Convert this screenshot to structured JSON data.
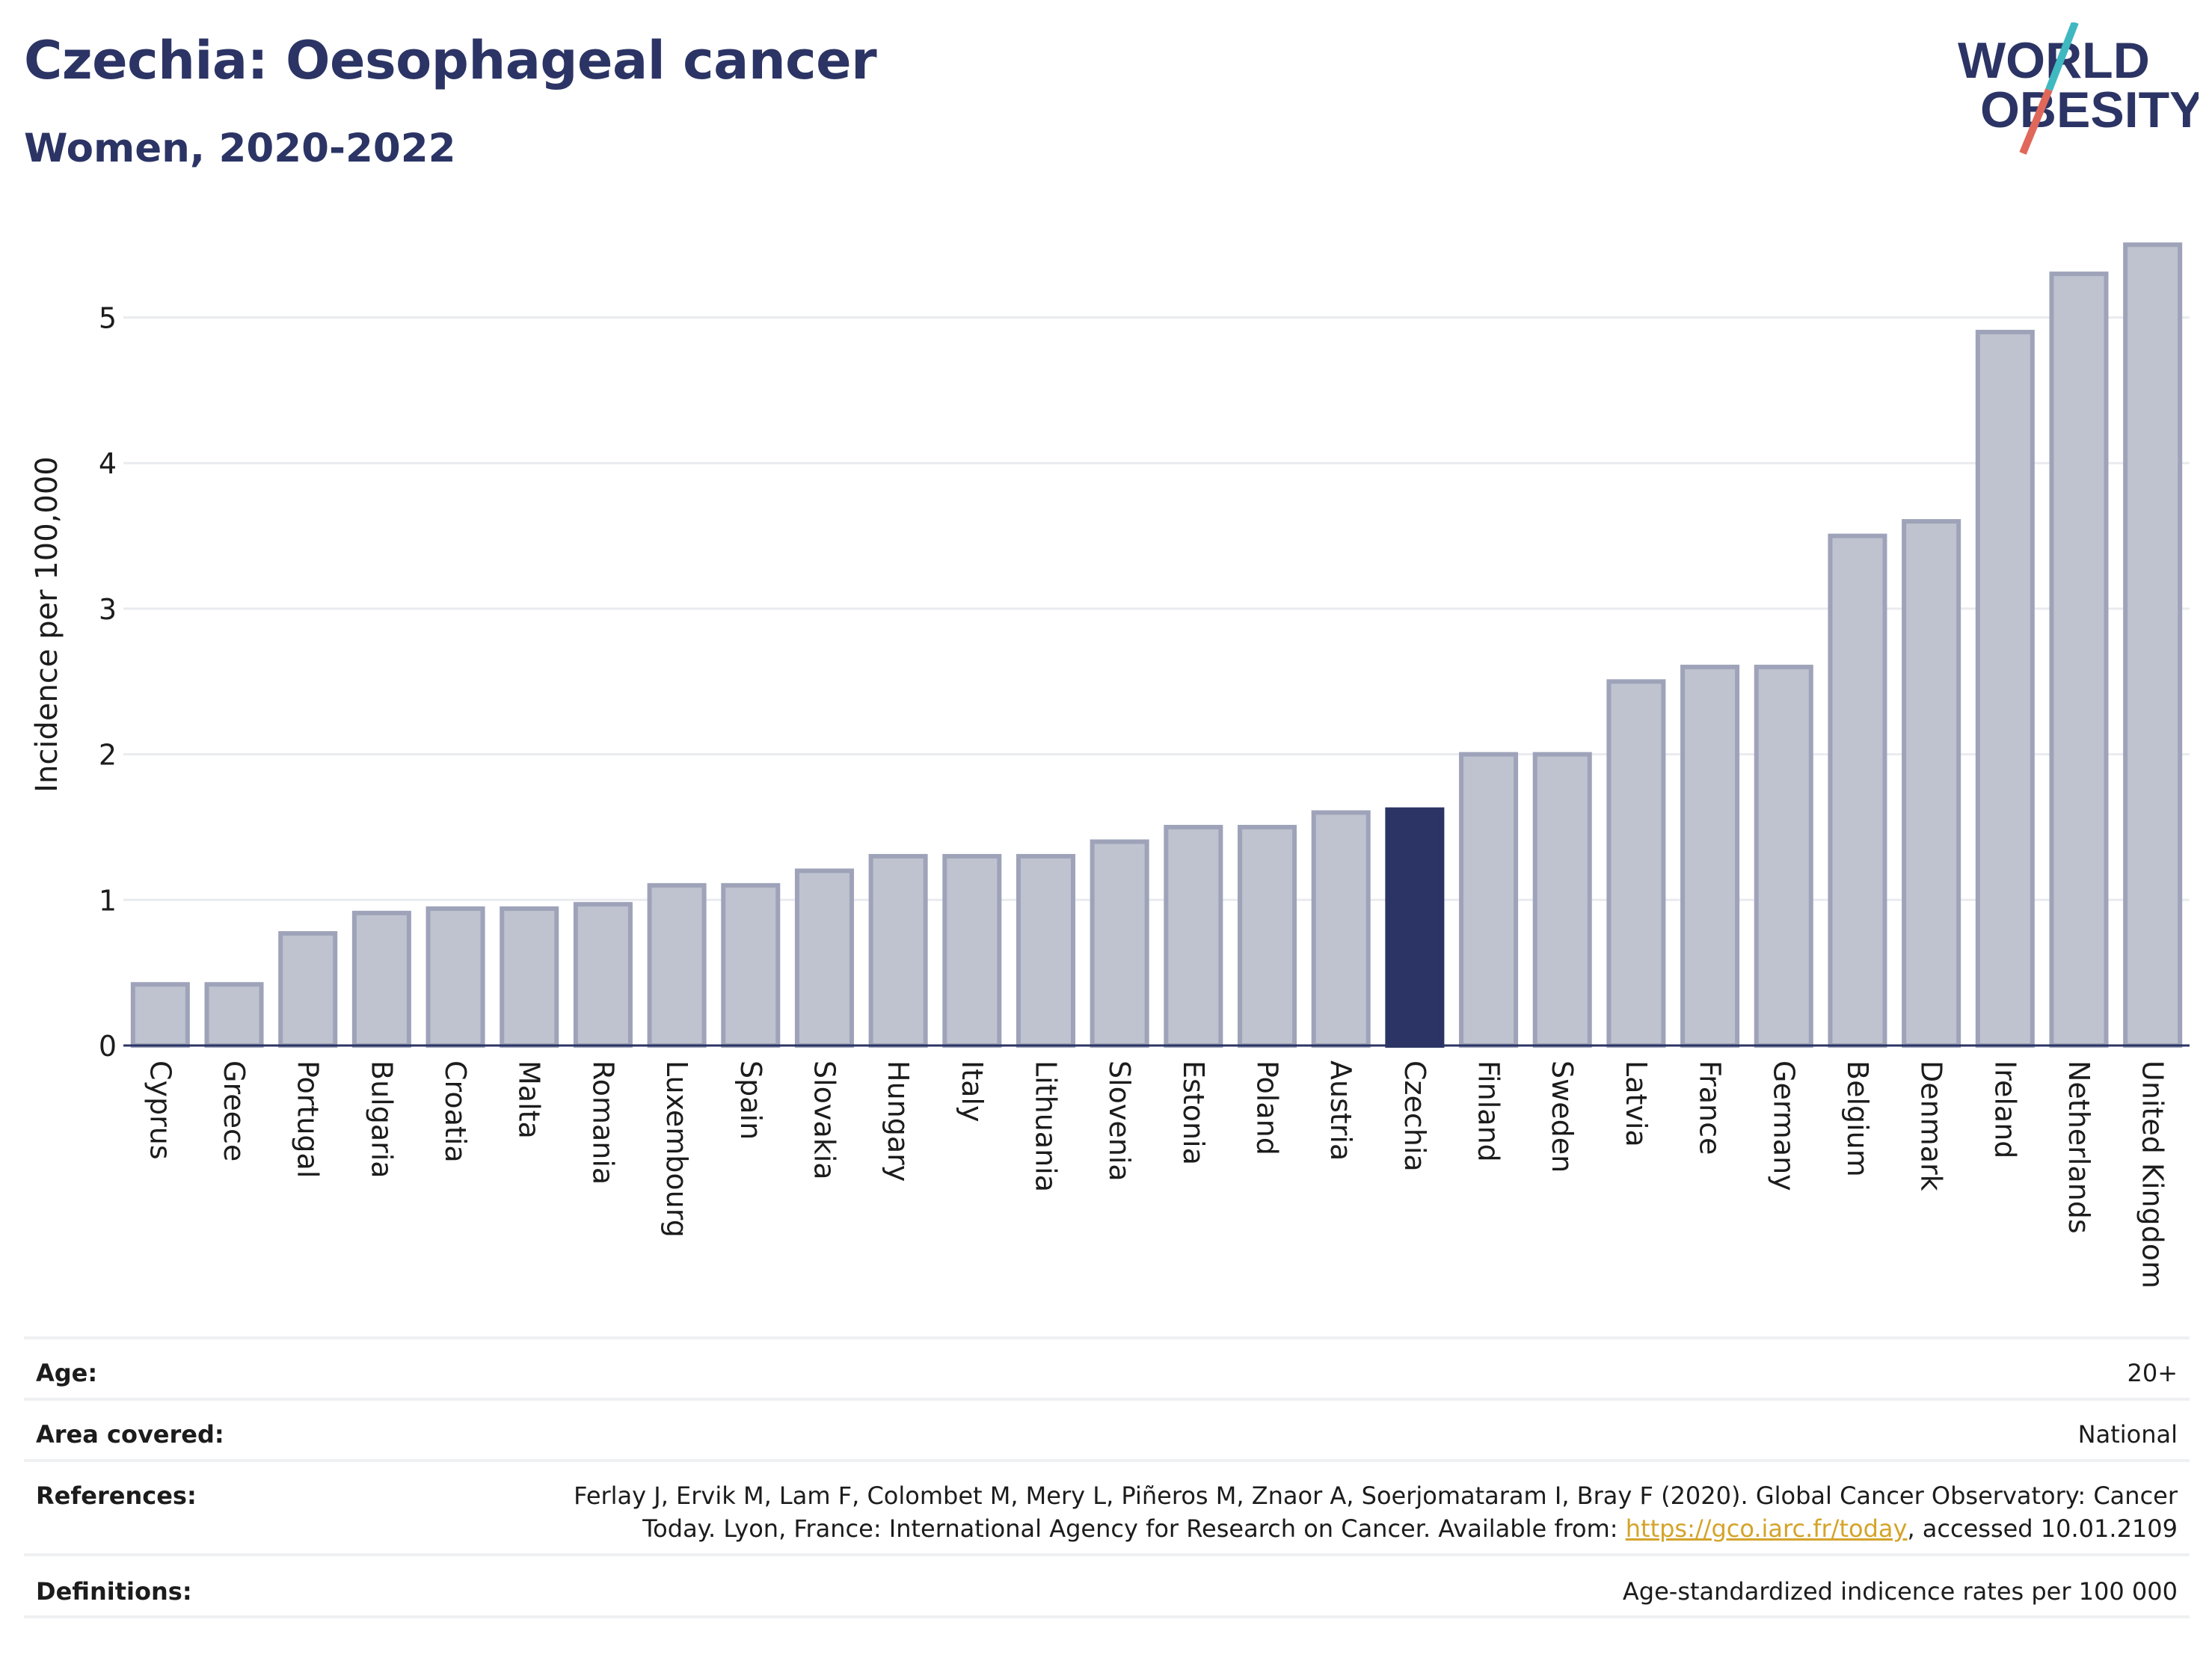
{
  "header": {
    "title": "Czechia: Oesophageal cancer",
    "subtitle": "Women, 2020-2022"
  },
  "logo": {
    "line1": "WORLD",
    "line2": "OBESITY",
    "colors": {
      "text": "#2b3464",
      "slash_teal": "#3fb8c0",
      "slash_red": "#e0685a"
    }
  },
  "chart_data": {
    "type": "bar",
    "title": "",
    "xlabel": "",
    "ylabel": "Incidence per 100,000",
    "ylim": [
      0,
      5.65
    ],
    "yticks": [
      0,
      1,
      2,
      3,
      4,
      5
    ],
    "grid": true,
    "highlight": "Czechia",
    "colors": {
      "bar": "#bfc3cf",
      "bar_border": "#9ea3b9",
      "highlight": "#2b3464"
    },
    "categories": [
      "Cyprus",
      "Greece",
      "Portugal",
      "Bulgaria",
      "Croatia",
      "Malta",
      "Romania",
      "Luxembourg",
      "Spain",
      "Slovakia",
      "Hungary",
      "Italy",
      "Lithuania",
      "Slovenia",
      "Estonia",
      "Poland",
      "Austria",
      "Czechia",
      "Finland",
      "Sweden",
      "Latvia",
      "France",
      "Germany",
      "Belgium",
      "Denmark",
      "Ireland",
      "Netherlands",
      "United Kingdom"
    ],
    "values": [
      0.42,
      0.42,
      0.77,
      0.91,
      0.94,
      0.94,
      0.97,
      1.1,
      1.1,
      1.2,
      1.3,
      1.3,
      1.3,
      1.4,
      1.5,
      1.5,
      1.6,
      1.62,
      2.0,
      2.0,
      2.5,
      2.6,
      2.6,
      3.5,
      3.6,
      4.9,
      5.3,
      5.5
    ]
  },
  "meta": {
    "age": {
      "label": "Age:",
      "value": "20+"
    },
    "area": {
      "label": "Area covered:",
      "value": "National"
    },
    "references": {
      "label": "References:",
      "line1": "Ferlay J, Ervik M, Lam F, Colombet M, Mery L, Piñeros M, Znaor A, Soerjomataram I, Bray F (2020). Global Cancer Observatory: Cancer",
      "line2_before": "Today. Lyon, France: International Agency for Research on Cancer. Available from: ",
      "link": "https://gco.iarc.fr/today",
      "line2_after": ", accessed 10.01.2109"
    },
    "definitions": {
      "label": "Definitions:",
      "value": "Age-standardized indicence rates per 100 000"
    }
  }
}
